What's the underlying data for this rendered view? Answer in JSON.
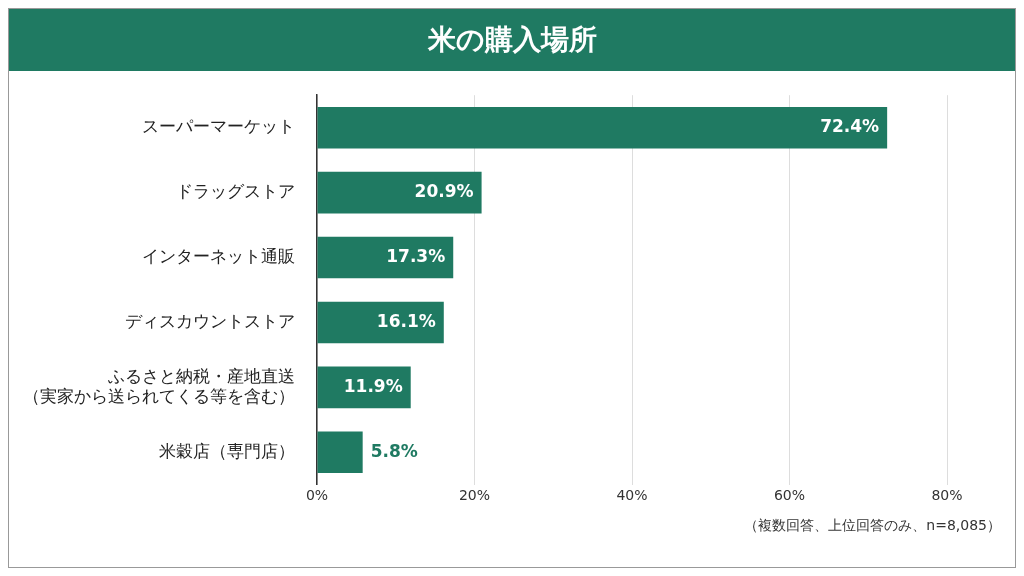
{
  "chart_data": {
    "type": "bar",
    "orientation": "horizontal",
    "title": "米の購入場所",
    "categories": [
      "スーパーマーケット",
      "ドラッグストア",
      "インターネット通販",
      "ディスカウントストア",
      "ふるさと納税・産地直送（実家から送られてくる等を含む）",
      "米穀店（専門店）"
    ],
    "values": [
      72.4,
      20.9,
      17.3,
      16.1,
      11.9,
      5.8
    ],
    "value_labels": [
      "72.4%",
      "20.9%",
      "17.3%",
      "16.1%",
      "11.9%",
      "5.8%"
    ],
    "color": "#1f7a62",
    "xlim": [
      0,
      80
    ],
    "xticks": [
      {
        "value": 0,
        "label": "0%"
      },
      {
        "value": 20,
        "label": "20%"
      },
      {
        "value": 40,
        "label": "40%"
      },
      {
        "value": 60,
        "label": "60%"
      },
      {
        "value": 80,
        "label": "80%"
      }
    ],
    "grid": "x",
    "legend": false,
    "annotations": [
      "（複数回答、上位回答のみ、n=8,085）"
    ]
  }
}
